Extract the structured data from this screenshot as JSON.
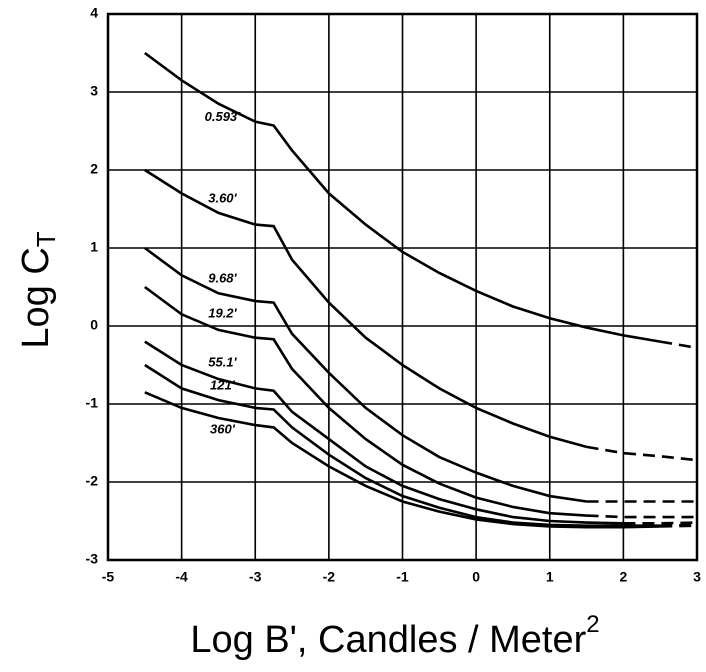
{
  "chart_data": {
    "type": "line",
    "y_label": {
      "text": "Log C",
      "subscript": "T"
    },
    "x_label": {
      "text": "Log B', Candles / Meter",
      "superscript": "2"
    },
    "x": [
      -4.5,
      -4,
      -3.5,
      -3,
      -2.75,
      -2.5,
      -2,
      -1.5,
      -1,
      -0.5,
      0,
      0.5,
      1,
      1.5,
      2,
      2.5,
      3
    ],
    "series": [
      {
        "name": "0.593'",
        "color": "#000000",
        "dashed_after": 2.5,
        "values": [
          3.5,
          3.15,
          2.85,
          2.62,
          2.57,
          2.25,
          1.7,
          1.3,
          0.95,
          0.68,
          0.45,
          0.25,
          0.1,
          -0.02,
          -0.12,
          -0.2,
          -0.28
        ]
      },
      {
        "name": "3.60'",
        "color": "#000000",
        "dashed_after": 1.5,
        "values": [
          2.0,
          1.7,
          1.45,
          1.3,
          1.28,
          0.85,
          0.3,
          -0.15,
          -0.5,
          -0.8,
          -1.05,
          -1.25,
          -1.42,
          -1.55,
          -1.63,
          -1.67,
          -1.72
        ]
      },
      {
        "name": "9.68'",
        "color": "#000000",
        "dashed_after": 1.5,
        "values": [
          1.0,
          0.65,
          0.42,
          0.32,
          0.3,
          -0.1,
          -0.6,
          -1.05,
          -1.4,
          -1.68,
          -1.88,
          -2.05,
          -2.18,
          -2.25,
          -2.25,
          -2.25,
          -2.25
        ]
      },
      {
        "name": "19.2'",
        "color": "#000000",
        "dashed_after": 1.5,
        "values": [
          0.5,
          0.15,
          -0.05,
          -0.15,
          -0.17,
          -0.55,
          -1.05,
          -1.45,
          -1.78,
          -2.02,
          -2.2,
          -2.32,
          -2.4,
          -2.43,
          -2.45,
          -2.45,
          -2.45
        ]
      },
      {
        "name": "55.1'",
        "color": "#000000",
        "dashed_after": 2,
        "values": [
          -0.2,
          -0.5,
          -0.68,
          -0.8,
          -0.83,
          -1.1,
          -1.45,
          -1.8,
          -2.05,
          -2.22,
          -2.35,
          -2.45,
          -2.5,
          -2.52,
          -2.53,
          -2.53,
          -2.52
        ]
      },
      {
        "name": "121'",
        "color": "#000000",
        "dashed_after": 2.5,
        "values": [
          -0.5,
          -0.8,
          -0.95,
          -1.05,
          -1.07,
          -1.3,
          -1.65,
          -1.95,
          -2.18,
          -2.33,
          -2.45,
          -2.52,
          -2.55,
          -2.56,
          -2.56,
          -2.56,
          -2.55
        ]
      },
      {
        "name": "360'",
        "color": "#000000",
        "dashed_after": 2.5,
        "values": [
          -0.85,
          -1.05,
          -1.18,
          -1.27,
          -1.3,
          -1.5,
          -1.8,
          -2.05,
          -2.25,
          -2.38,
          -2.48,
          -2.54,
          -2.57,
          -2.58,
          -2.58,
          -2.57,
          -2.56
        ]
      }
    ],
    "xlim": [
      -5,
      3
    ],
    "ylim": [
      -3,
      4
    ],
    "xticks": [
      -5,
      -4,
      -3,
      -2,
      -1,
      0,
      1,
      2,
      3
    ],
    "yticks": [
      -3,
      -2,
      -1,
      0,
      1,
      2,
      3,
      4
    ],
    "grid": true
  }
}
